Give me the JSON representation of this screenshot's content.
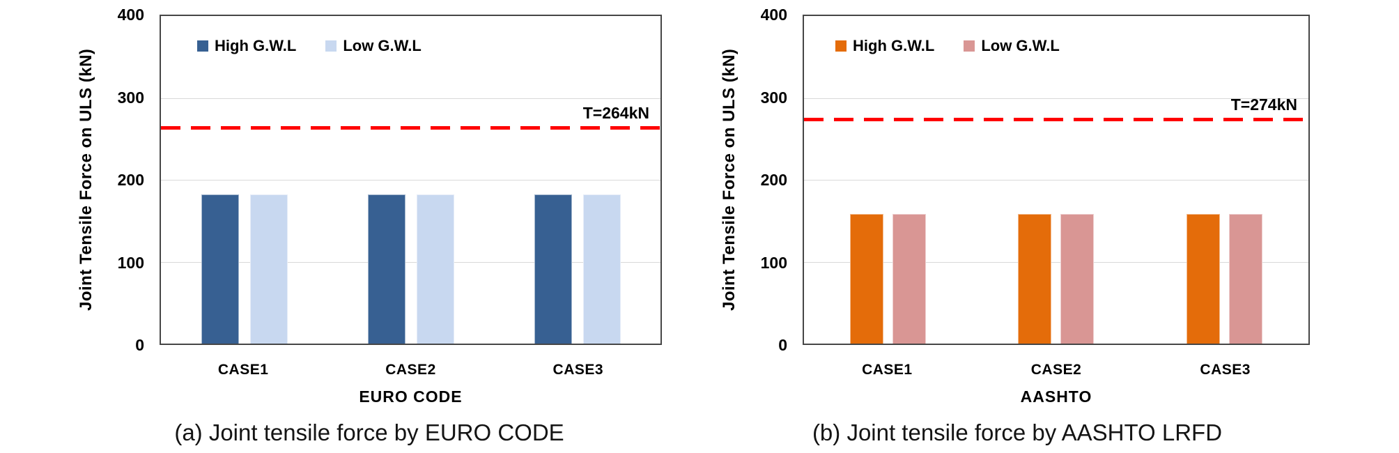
{
  "figure": {
    "background": "#ffffff",
    "panels_count": 2
  },
  "chart_data": [
    {
      "panel": "a",
      "type": "bar",
      "caption": "(a) Joint tensile force by EURO CODE",
      "xlabel": "EURO CODE",
      "ylabel": "Joint Tensile Force on ULS (kN)",
      "categories": [
        "CASE1",
        "CASE2",
        "CASE3"
      ],
      "series": [
        {
          "name": "High G.W.L",
          "color": "#376092",
          "values": [
            182,
            182,
            182
          ]
        },
        {
          "name": "Low G.W.L",
          "color": "#C8D8F0",
          "values": [
            182,
            182,
            182
          ]
        }
      ],
      "ylim": [
        0,
        400
      ],
      "yticks": [
        0,
        100,
        200,
        300,
        400
      ],
      "grid": true,
      "legend_position": "inside-top-left",
      "threshold_line": {
        "label": "T=264kN",
        "value": 264,
        "color": "#FF0000",
        "style": "dashed"
      }
    },
    {
      "panel": "b",
      "type": "bar",
      "caption": "(b) Joint tensile force by AASHTO LRFD",
      "xlabel": "AASHTO",
      "ylabel": "Joint Tensile Force on ULS (kN)",
      "categories": [
        "CASE1",
        "CASE2",
        "CASE3"
      ],
      "series": [
        {
          "name": "High G.W.L",
          "color": "#E46C0A",
          "values": [
            158,
            158,
            158
          ]
        },
        {
          "name": "Low G.W.L",
          "color": "#D99694",
          "values": [
            158,
            158,
            158
          ]
        }
      ],
      "ylim": [
        0,
        400
      ],
      "yticks": [
        0,
        100,
        200,
        300,
        400
      ],
      "grid": true,
      "legend_position": "inside-top-left",
      "threshold_line": {
        "label": "T=274kN",
        "value": 274,
        "color": "#FF0000",
        "style": "dashed"
      }
    }
  ]
}
